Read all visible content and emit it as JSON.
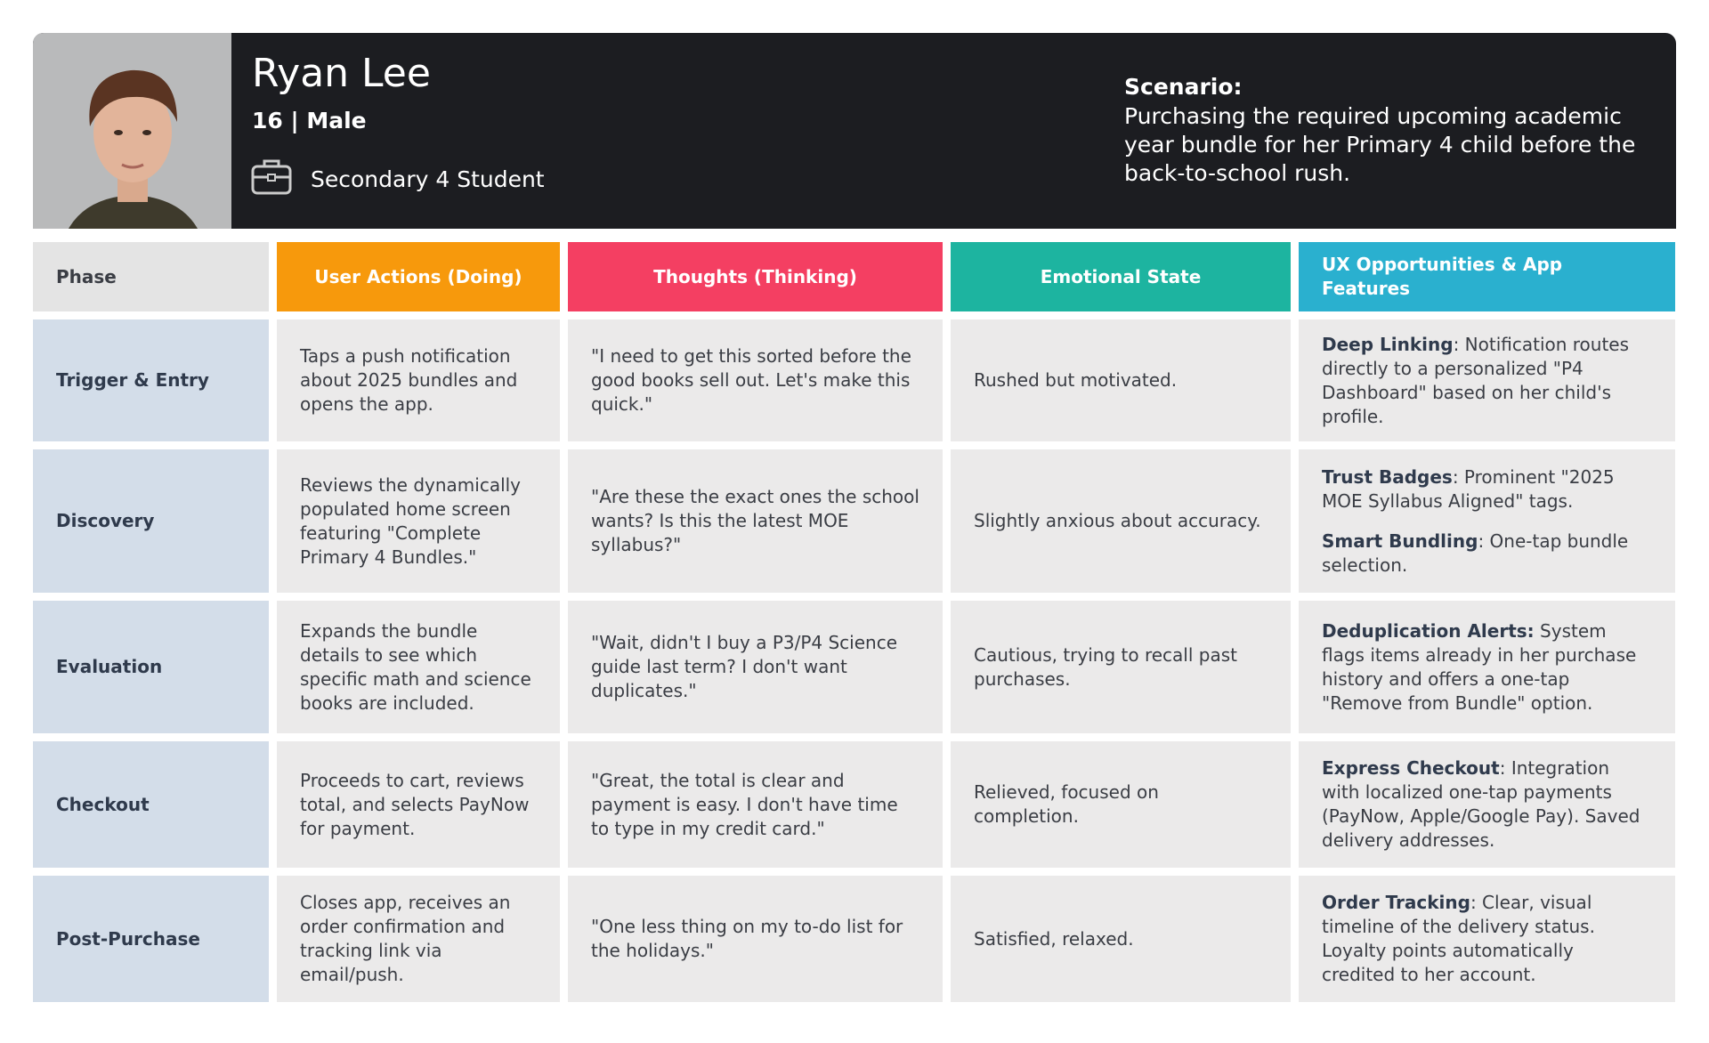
{
  "header": {
    "name": "Ryan Lee",
    "age_gender": "16 | Male",
    "role": "Secondary 4 Student",
    "scenario_label": "Scenario:",
    "scenario_text": "Purchasing the required upcoming academic year bundle for her Primary 4 child before the back-to-school rush."
  },
  "table": {
    "columns": [
      "Phase",
      "User Actions (Doing)",
      "Thoughts (Thinking)",
      "Emotional State",
      "UX Opportunities & App Features"
    ],
    "rows": [
      {
        "phase": "Trigger & Entry",
        "actions": "Taps a push notification about 2025 bundles and opens the app.",
        "thoughts": "\"I need to get this sorted before the good books sell out. Let's make this quick.\"",
        "emotion": "Rushed but motivated.",
        "ux": [
          {
            "title": "Deep Linking",
            "text": ": Notification routes directly to a personalized \"P4 Dashboard\" based on her child's profile."
          }
        ]
      },
      {
        "phase": "Discovery",
        "actions": "Reviews the dynamically populated home screen featuring \"Complete Primary 4 Bundles.\"",
        "thoughts": "\"Are these the exact ones the school wants? Is this the latest MOE syllabus?\"",
        "emotion": "Slightly anxious about accuracy.",
        "ux": [
          {
            "title": "Trust Badges",
            "text": ": Prominent \"2025 MOE Syllabus Aligned\" tags."
          },
          {
            "title": "Smart Bundling",
            "text": ": One-tap bundle selection."
          }
        ]
      },
      {
        "phase": "Evaluation",
        "actions": "Expands the bundle details to see which specific math and science books are included.",
        "thoughts": "\"Wait, didn't I buy a P3/P4 Science guide last term? I don't want duplicates.\"",
        "emotion": "Cautious, trying to recall past purchases.",
        "ux": [
          {
            "title": "Deduplication Alerts:",
            "text": " System flags items already in her purchase history and offers a one-tap \"Remove from Bundle\" option."
          }
        ]
      },
      {
        "phase": "Checkout",
        "actions": "Proceeds to cart, reviews total, and selects PayNow for payment.",
        "thoughts": "\"Great, the total is clear and payment is easy. I don't have time to type in my credit card.\"",
        "emotion": "Relieved, focused on completion.",
        "ux": [
          {
            "title": "Express Checkout",
            "text": ": Integration with localized one-tap payments (PayNow, Apple/Google Pay). Saved delivery addresses."
          }
        ]
      },
      {
        "phase": "Post-Purchase",
        "actions": "Closes app, receives an order confirmation and tracking link via email/push.",
        "thoughts": "\"One less thing on my to-do list for the holidays.\"",
        "emotion": "Satisfied, relaxed.",
        "ux": [
          {
            "title": "Order Tracking",
            "text": ": Clear, visual timeline of the delivery status. Loyalty points automatically credited to her account."
          }
        ]
      }
    ]
  }
}
